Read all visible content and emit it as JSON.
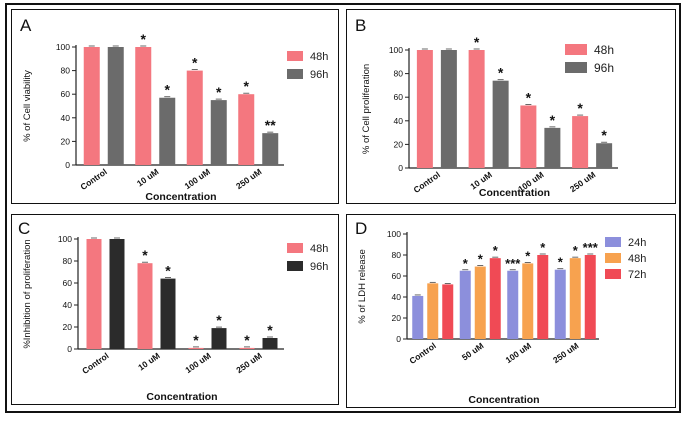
{
  "chart_data": [
    {
      "panel_letter": "A",
      "type": "bar",
      "categories": [
        "Control",
        "10 uM",
        "100 uM",
        "250 uM"
      ],
      "series": [
        {
          "name": "48h",
          "color": "#f4777f",
          "values": [
            100,
            100,
            80,
            60
          ],
          "stars": [
            "",
            "*",
            "*",
            "*"
          ]
        },
        {
          "name": "96h",
          "color": "#6b6b6b",
          "values": [
            100,
            57,
            55,
            27
          ],
          "stars": [
            "",
            "*",
            "*",
            "**"
          ]
        }
      ],
      "xlabel": "Concentration",
      "ylabel": "% of Cell viability",
      "ylim": [
        0,
        100
      ],
      "yticks": [
        "0",
        "20",
        "40",
        "60",
        "80",
        "100"
      ],
      "legend_position": "top-right",
      "grid": false
    },
    {
      "panel_letter": "B",
      "type": "bar",
      "categories": [
        "Control",
        "10 uM",
        "100 uM",
        "250 uM"
      ],
      "series": [
        {
          "name": "48h",
          "color": "#f4777f",
          "values": [
            100,
            100,
            53,
            44
          ],
          "stars": [
            "",
            "*",
            "*",
            "*"
          ]
        },
        {
          "name": "96h",
          "color": "#6b6b6b",
          "values": [
            100,
            74,
            34,
            21
          ],
          "stars": [
            "",
            "*",
            "*",
            "*"
          ]
        }
      ],
      "xlabel": "Concentration",
      "ylabel": "% of Cell proliferation",
      "ylim": [
        0,
        100
      ],
      "yticks": [
        "0",
        "20",
        "40",
        "60",
        "80",
        "100"
      ],
      "legend_position": "top-right",
      "grid": false
    },
    {
      "panel_letter": "C",
      "type": "bar",
      "categories": [
        "Control",
        "10 uM",
        "100 uM",
        "250 uM"
      ],
      "series": [
        {
          "name": "48h",
          "color": "#f4777f",
          "values": [
            100,
            78,
            1,
            1
          ],
          "stars": [
            "",
            "*",
            "*",
            "*"
          ]
        },
        {
          "name": "96h",
          "color": "#2b2b2b",
          "values": [
            100,
            64,
            19,
            10
          ],
          "stars": [
            "",
            "*",
            "*",
            "*"
          ]
        }
      ],
      "xlabel": "Concentration",
      "ylabel": "%Inhibition of proliferation",
      "ylim": [
        0,
        100
      ],
      "yticks": [
        "0",
        "20",
        "40",
        "60",
        "80",
        "100"
      ],
      "legend_position": "top-right",
      "grid": false
    },
    {
      "panel_letter": "D",
      "type": "bar",
      "categories": [
        "Control",
        "50 uM",
        "100 uM",
        "250 uM"
      ],
      "series": [
        {
          "name": "24h",
          "color": "#8c8fdc",
          "values": [
            41,
            65,
            65,
            66
          ],
          "stars": [
            "",
            "*",
            "***",
            "*"
          ]
        },
        {
          "name": "48h",
          "color": "#f7a24f",
          "values": [
            53,
            69,
            72,
            77
          ],
          "stars": [
            "",
            "*",
            "*",
            "*"
          ]
        },
        {
          "name": "72h",
          "color": "#f04a55",
          "values": [
            52,
            77,
            80,
            80
          ],
          "stars": [
            "",
            "*",
            "*",
            "***"
          ]
        }
      ],
      "xlabel": "Concentration",
      "ylabel": "% of LDH release",
      "ylim": [
        0,
        100
      ],
      "yticks": [
        "0",
        "20",
        "40",
        "60",
        "80",
        "100"
      ],
      "legend_position": "top-right",
      "grid": false
    }
  ]
}
